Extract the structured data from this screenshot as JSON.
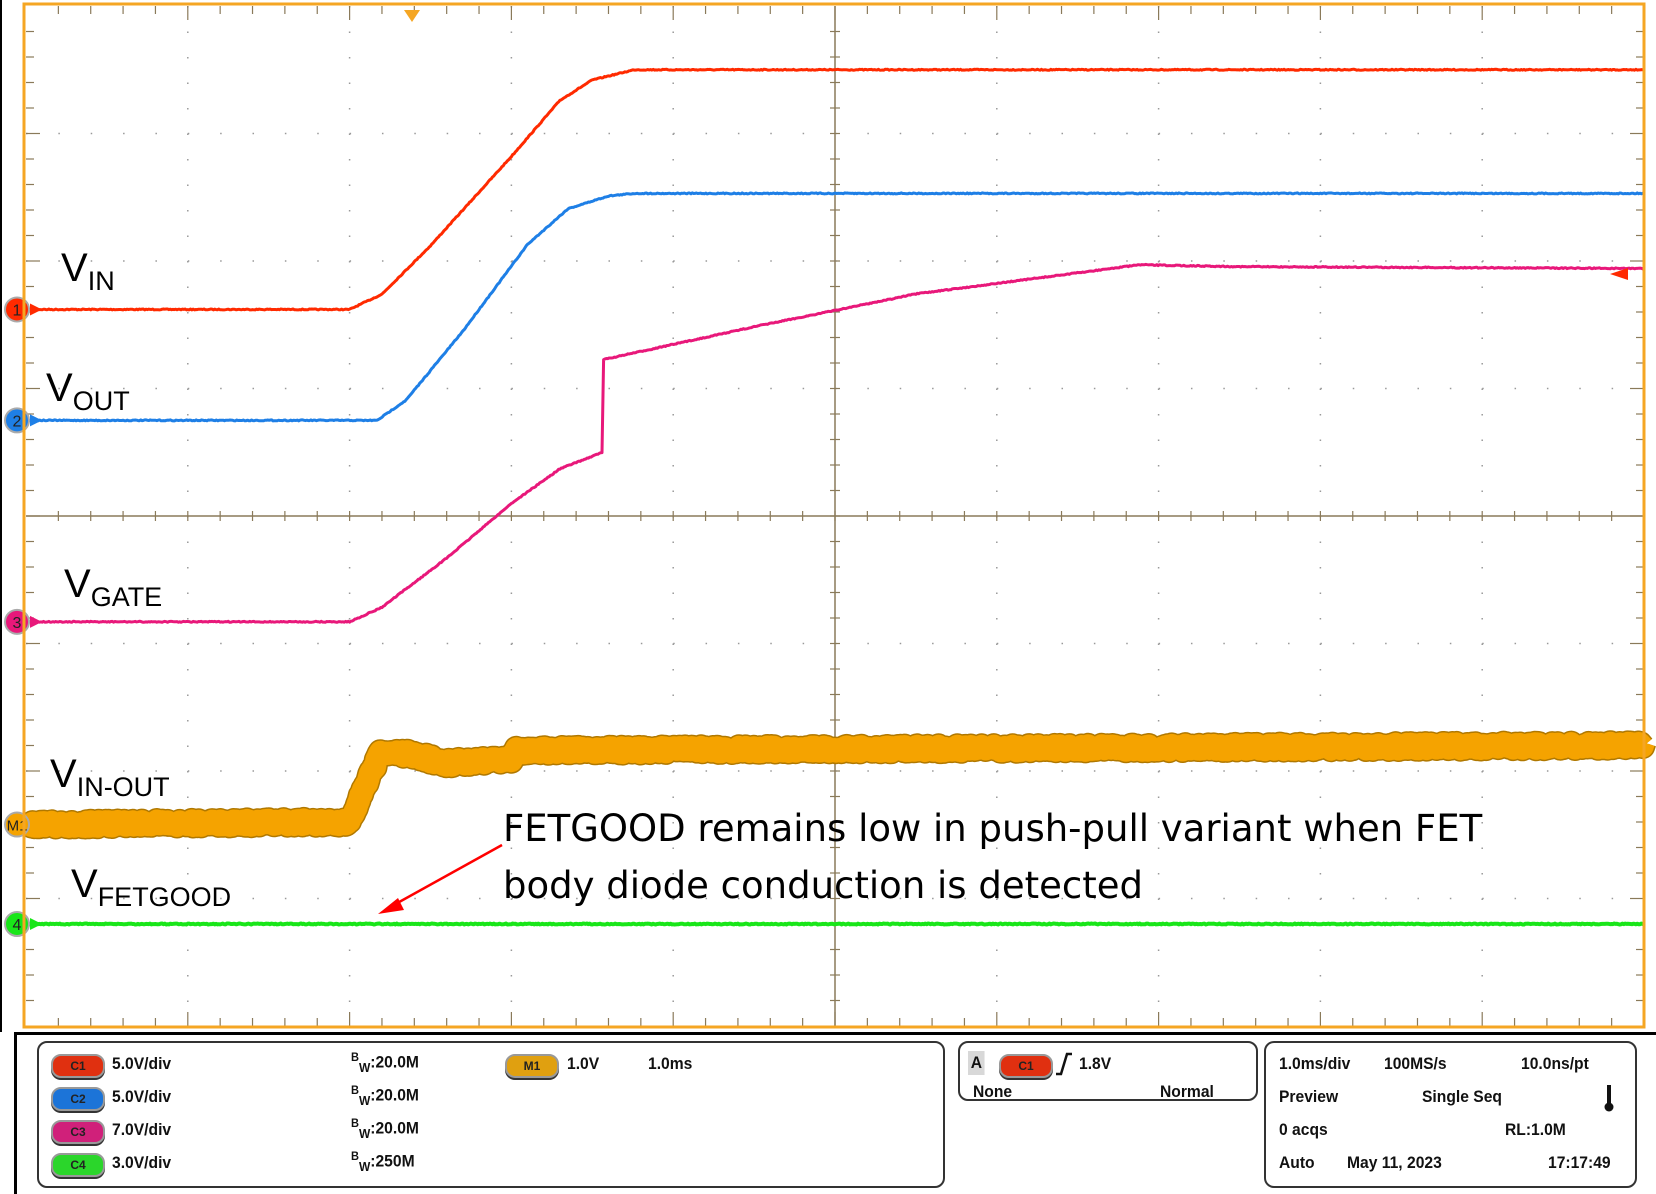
{
  "chart_data": {
    "type": "line",
    "x_unit": "ms",
    "time_per_div": "1.0ms/div",
    "xlim": [
      0,
      10
    ],
    "grid": true,
    "series": [
      {
        "name": "VIN",
        "label_main": "V",
        "label_sub": "IN",
        "channel": "1",
        "scale": "5.0V/div",
        "color": "#ff2a00",
        "points": [
          [
            0,
            0
          ],
          [
            2.0,
            0
          ],
          [
            2.2,
            0.6
          ],
          [
            2.5,
            2.5
          ],
          [
            3.0,
            6.0
          ],
          [
            3.3,
            8.2
          ],
          [
            3.5,
            9.0
          ],
          [
            3.76,
            9.4
          ],
          [
            10,
            9.4
          ]
        ]
      },
      {
        "name": "VOUT",
        "label_main": "V",
        "label_sub": "OUT",
        "channel": "2",
        "scale": "5.0V/div",
        "color": "#1e7fe6",
        "points": [
          [
            0,
            0
          ],
          [
            2.17,
            0
          ],
          [
            2.35,
            0.8
          ],
          [
            2.7,
            3.5
          ],
          [
            3.1,
            6.9
          ],
          [
            3.35,
            8.3
          ],
          [
            3.6,
            8.8
          ],
          [
            3.76,
            8.9
          ],
          [
            10,
            8.9
          ]
        ]
      },
      {
        "name": "VGATE",
        "label_main": "V",
        "label_sub": "GATE",
        "channel": "3",
        "scale": "7.0V/div",
        "color": "#e8187a",
        "points": [
          [
            0,
            0
          ],
          [
            2.0,
            0
          ],
          [
            2.2,
            0.8
          ],
          [
            2.6,
            3.5
          ],
          [
            3.0,
            6.5
          ],
          [
            3.3,
            8.4
          ],
          [
            3.56,
            9.3
          ],
          [
            3.57,
            14.4
          ],
          [
            4.5,
            16.2
          ],
          [
            5.5,
            18.0
          ],
          [
            6.88,
            19.6
          ],
          [
            7.5,
            19.5
          ],
          [
            10,
            19.4
          ]
        ]
      },
      {
        "name": "VIN-OUT",
        "label_main": "V",
        "label_sub": "IN-OUT",
        "channel": "M1",
        "scale": "1.0V/div",
        "color": "#f5a300",
        "points": [
          [
            0,
            0
          ],
          [
            2.0,
            0.02
          ],
          [
            2.19,
            0.56
          ],
          [
            2.4,
            0.55
          ],
          [
            2.58,
            0.48
          ],
          [
            3.0,
            0.52
          ],
          [
            3.03,
            0.58
          ],
          [
            10,
            0.62
          ]
        ]
      },
      {
        "name": "VFETGOOD",
        "label_main": "V",
        "label_sub": "FETGOOD",
        "channel": "4",
        "scale": "3.0V/div",
        "color": "#19e619",
        "points": [
          [
            0,
            0
          ],
          [
            10,
            0
          ]
        ]
      }
    ],
    "annotation": {
      "line1": "FETGOOD remains low in push-pull variant when FET",
      "line2": "body diode conduction is detected",
      "arrow_color": "#ff0000"
    }
  },
  "colors": {
    "frame": "#f5a623",
    "grid": "#8a7a5a"
  },
  "status_panel": {
    "channels": [
      {
        "badge": "C1",
        "scale": "5.0V/div",
        "bw_label": "W",
        "bw_value": ":20.0M",
        "color": "#e03010"
      },
      {
        "badge": "C2",
        "scale": "5.0V/div",
        "bw_label": "W",
        "bw_value": ":20.0M",
        "color": "#1c74d8"
      },
      {
        "badge": "C3",
        "scale": "7.0V/div",
        "bw_label": "W",
        "bw_value": ":20.0M",
        "color": "#d0207a"
      },
      {
        "badge": "C4",
        "scale": "3.0V/div",
        "bw_label": "W",
        "bw_value": ":250M",
        "color": "#2bd62b"
      }
    ],
    "bw_prefix": "B",
    "math": {
      "badge": "M1",
      "scale": "1.0V",
      "time": "1.0ms",
      "color": "#e0a010"
    },
    "trigger": {
      "source_letter": "A",
      "badge": "C1",
      "level": "1.8V",
      "coupling": "None",
      "mode": "Normal",
      "slope_icon": "rising-edge"
    },
    "acquisition": {
      "time_div": "1.0ms/div",
      "sample_rate": "100MS/s",
      "resolution": "10.0ns/pt",
      "state": "Preview",
      "run_mode": "Single Seq",
      "acqs": "0 acqs",
      "record_length": "RL:1.0M",
      "trigger_mode": "Auto",
      "date": "May 11, 2023",
      "time": "17:17:49",
      "status_icon": "thermometer"
    }
  }
}
